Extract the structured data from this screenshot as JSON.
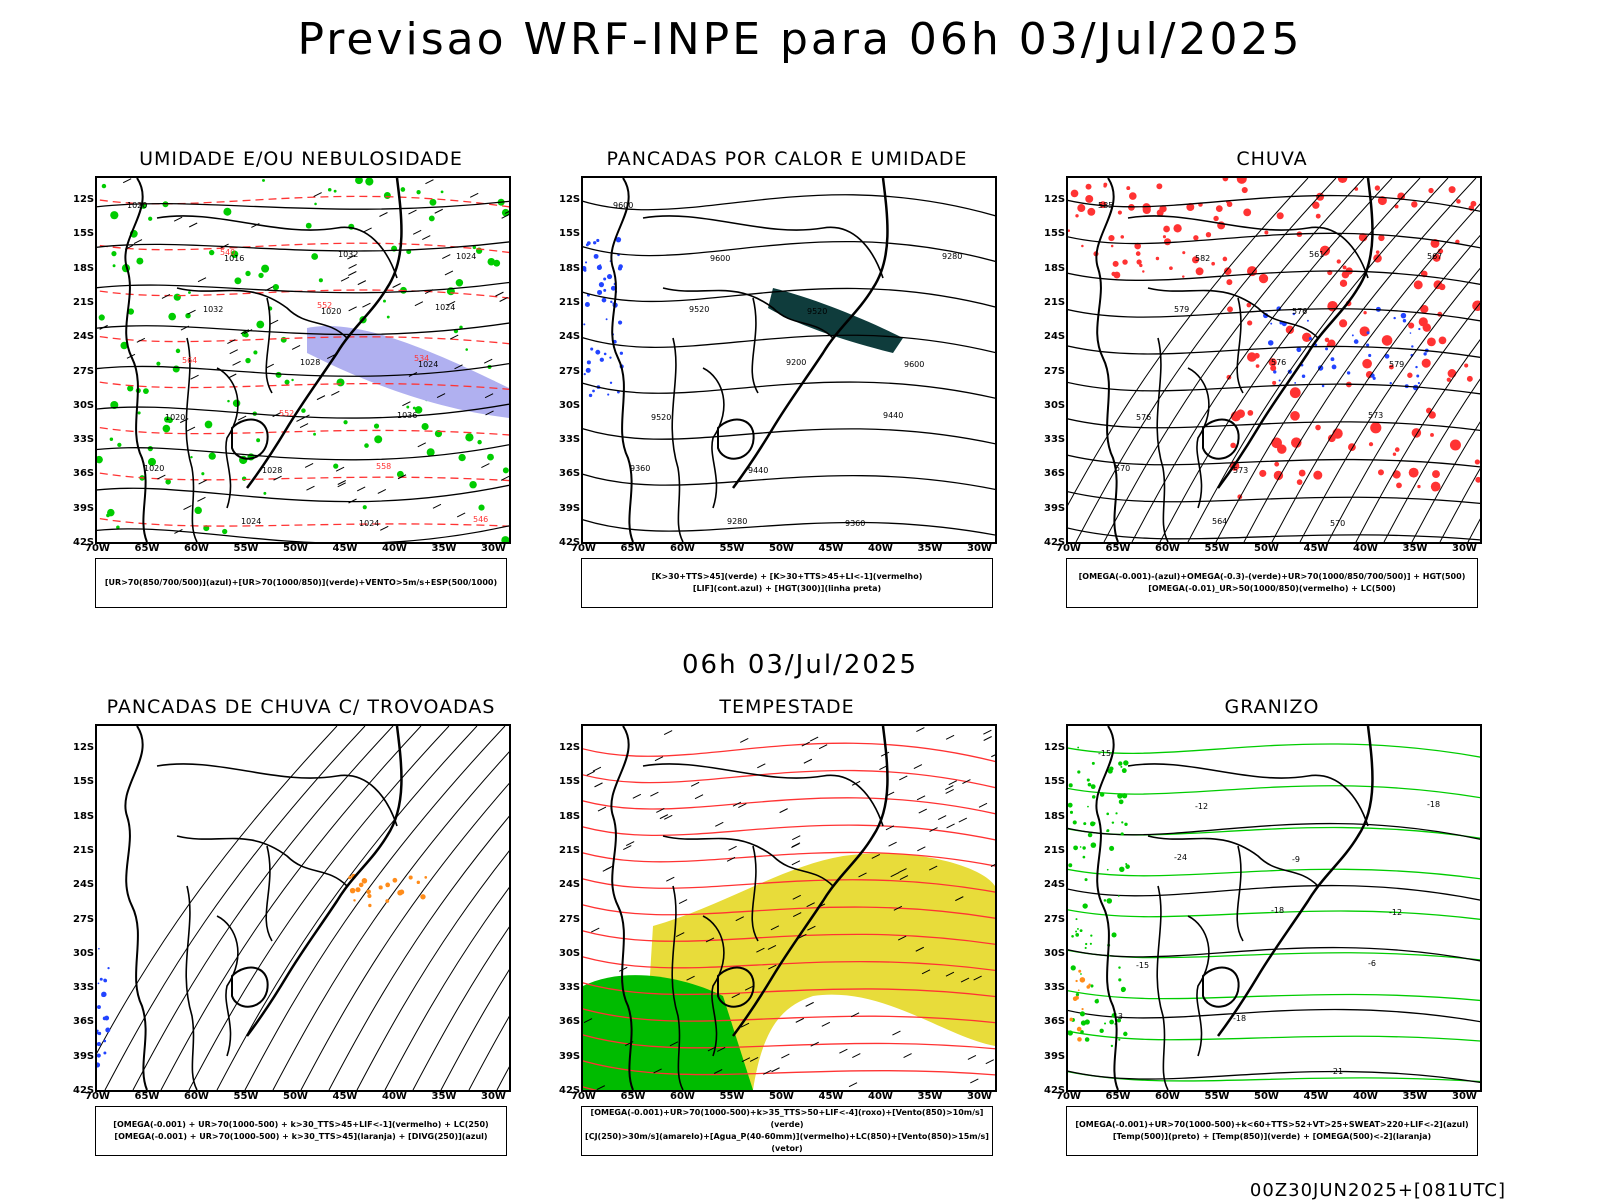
{
  "main_title": "Previsao WRF-INPE  para 06h 03/Jul/2025",
  "mid_title": "06h 03/Jul/2025",
  "run_label": "00Z30JUN2025+[081UTC]",
  "lat_labels": [
    "12S",
    "15S",
    "18S",
    "21S",
    "24S",
    "27S",
    "30S",
    "33S",
    "36S",
    "39S",
    "42S"
  ],
  "lon_labels": [
    "70W",
    "65W",
    "60W",
    "55W",
    "50W",
    "45W",
    "40W",
    "35W",
    "30W"
  ],
  "panels": [
    {
      "title": "UMIDADE E/OU NEBULOSIDADE",
      "legend": [
        "[UR>70(850/700/500)](azul)+[UR>70(1000/850)](verde)+VENTO>5m/s+ESP(500/1000)"
      ],
      "labels": [
        "1020",
        "1016",
        "1020",
        "1024",
        "1020",
        "1028",
        "1024",
        "1024",
        "1032",
        "1028",
        "1036",
        "1020",
        "1024",
        "1032",
        "1024",
        "564",
        "552",
        "558",
        "546",
        "540",
        "552",
        "534"
      ]
    },
    {
      "title": "PANCADAS POR CALOR E UMIDADE",
      "legend": [
        "[K>30+TTS>45](verde) + [K>30+TTS>45+LI<-1](vermelho)",
        "[LIF](cont.azul) + [HGT(300)](linha preta)"
      ],
      "labels": [
        "9600",
        "9600",
        "9520",
        "9600",
        "9520",
        "9440",
        "9360",
        "9280",
        "9520",
        "9200",
        "9440",
        "9360",
        "9280"
      ]
    },
    {
      "title": "CHUVA",
      "legend": [
        "[OMEGA(-0.001)-(azul)+OMEGA(-0.3)-(verde)+UR>70(1000/850/700/500)] + HGT(500)",
        "[OMEGA(-0.01)_UR>50(1000/850)(vermelho) + LC(500)"
      ],
      "labels": [
        "585",
        "582",
        "576",
        "579",
        "576",
        "573",
        "570",
        "567",
        "579",
        "576",
        "573",
        "570",
        "564",
        "561"
      ]
    },
    {
      "title": "PANCADAS DE CHUVA C/ TROVOADAS",
      "legend": [
        "[OMEGA(-0.001) + UR>70(1000-500) + k>30_TTS>45+LIF<-1](vermelho) + LC(250)",
        "[OMEGA(-0.001) + UR>70(1000-500) + k>30_TTS>45](laranja) + [DIVG(250)](azul)"
      ],
      "labels": []
    },
    {
      "title": "TEMPESTADE",
      "legend": [
        "[OMEGA(-0.001)+UR>70(1000-500)+k>35_TTS>50+LIF<-4](roxo)+[Vento(850)>10m/s](verde)",
        "[CJ(250)>30m/s](amarelo)+[Agua_P(40-60mm)](vermelho)+LC(850)+[Vento(850)>15m/s](vetor)"
      ],
      "labels": []
    },
    {
      "title": "GRANIZO",
      "legend": [
        "[OMEGA(-0.001)+UR>70(1000-500)+k<60+TTS>52+VT>25+SWEAT>220+LIF<-2](azul)",
        "[Temp(500)](preto) + [Temp(850)](verde) + [OMEGA(500)<-2](laranja)"
      ],
      "labels": [
        "-15",
        "-12",
        "-9",
        "-12",
        "-15",
        "-18",
        "-21",
        "-18",
        "-24",
        "-18",
        "-6",
        "-3"
      ]
    }
  ],
  "colors": {
    "green": "#00cc00",
    "red": "#ff3333",
    "blue": "#2244ff",
    "lavender": "#b0b0f0",
    "yellow": "#e8dc3a",
    "darkteal": "#0f3c3c",
    "orange": "#ff8c1a",
    "black": "#000000"
  }
}
